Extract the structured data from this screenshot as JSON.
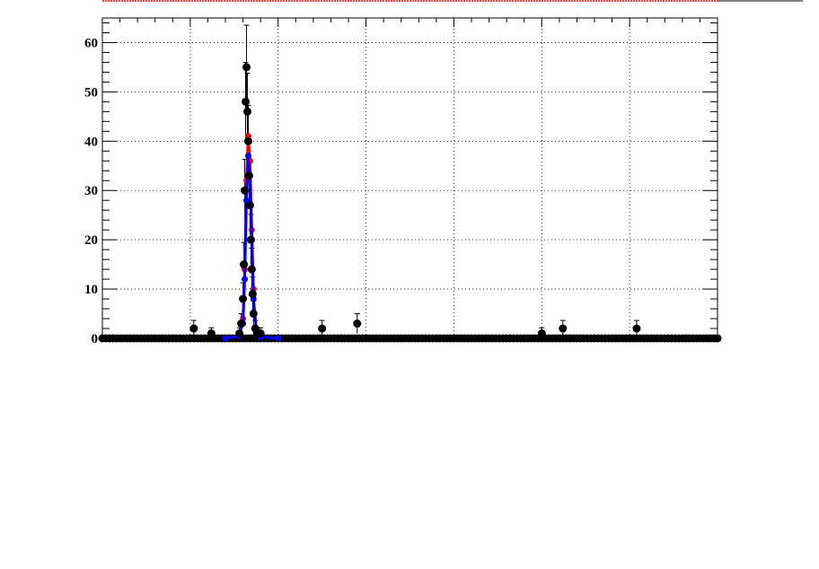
{
  "chart_data": {
    "type": "scatter",
    "title": "",
    "xlabel": "",
    "ylabel": "",
    "xlim": [
      0,
      700
    ],
    "ylim": [
      0,
      65
    ],
    "grid": true,
    "y_ticks": [
      0,
      10,
      20,
      30,
      40,
      50,
      60
    ],
    "x_tick_labels_visible": false,
    "colors": {
      "points": "#000000",
      "fit_red": "#ff0000",
      "fit_blue": "#0000ff",
      "top_line": "#ff0000"
    },
    "series": [
      {
        "kind": "points",
        "x": [
          104,
          124,
          156,
          158,
          160,
          161,
          162,
          163,
          164,
          165,
          166,
          167,
          168,
          169,
          170,
          171,
          172,
          174,
          176,
          178,
          180,
          250,
          290,
          500,
          524,
          608
        ],
        "y": [
          2,
          1,
          1,
          3,
          8,
          15,
          30,
          48,
          55,
          46,
          40,
          33,
          27,
          20,
          14,
          9,
          5,
          2,
          1,
          1,
          1,
          2,
          3,
          1,
          2,
          2
        ]
      },
      {
        "kind": "fit",
        "color": "#ff0000",
        "x": [
          160,
          162,
          164,
          166,
          168,
          170,
          172
        ],
        "y": [
          4,
          14,
          32,
          41,
          36,
          22,
          10
        ]
      },
      {
        "kind": "fit",
        "color": "#0000ff",
        "x": [
          140,
          155,
          160,
          162,
          164,
          166,
          168,
          170,
          172,
          175,
          180,
          200
        ],
        "y": [
          0,
          0.5,
          3,
          12,
          28,
          37,
          33,
          20,
          8,
          2,
          0.3,
          0
        ]
      }
    ]
  }
}
